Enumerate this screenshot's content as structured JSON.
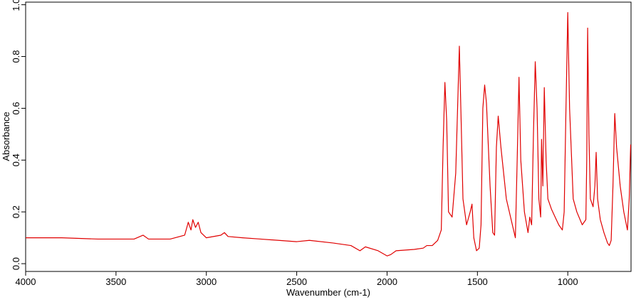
{
  "chart_data": {
    "type": "line",
    "x_label": "Wavenumber (cm-1)",
    "y_label": "Absorbance",
    "xlim": [
      4000,
      650
    ],
    "ylim": [
      -0.03,
      1.01
    ],
    "xticks": [
      4000,
      3500,
      3000,
      2500,
      2000,
      1500,
      1000
    ],
    "yticks": [
      {
        "value": 0,
        "label": "0.0"
      },
      0.2,
      0.4,
      0.6,
      0.8,
      {
        "value": 1,
        "label": "1.0"
      }
    ],
    "series": [
      {
        "color": "#e00000",
        "x": [
          4000,
          3800,
          3600,
          3400,
          3350,
          3320,
          3200,
          3120,
          3100,
          3085,
          3075,
          3060,
          3045,
          3030,
          3000,
          2920,
          2900,
          2880,
          2800,
          2700,
          2600,
          2500,
          2430,
          2300,
          2200,
          2150,
          2120,
          2050,
          2000,
          1980,
          1950,
          1850,
          1800,
          1780,
          1750,
          1720,
          1700,
          1690,
          1680,
          1670,
          1660,
          1640,
          1620,
          1600,
          1590,
          1580,
          1560,
          1540,
          1530,
          1520,
          1505,
          1490,
          1480,
          1470,
          1460,
          1450,
          1430,
          1415,
          1405,
          1395,
          1385,
          1370,
          1340,
          1320,
          1300,
          1290,
          1280,
          1270,
          1260,
          1240,
          1220,
          1210,
          1200,
          1190,
          1180,
          1170,
          1160,
          1150,
          1145,
          1138,
          1130,
          1120,
          1110,
          1090,
          1070,
          1050,
          1030,
          1020,
          1010,
          1000,
          990,
          970,
          950,
          920,
          900,
          895,
          890,
          883,
          875,
          860,
          850,
          843,
          835,
          820,
          800,
          780,
          770,
          760,
          750,
          740,
          730,
          710,
          690,
          670,
          660,
          652
        ],
        "values": [
          0.1,
          0.1,
          0.095,
          0.095,
          0.11,
          0.095,
          0.095,
          0.11,
          0.16,
          0.13,
          0.17,
          0.14,
          0.16,
          0.12,
          0.1,
          0.11,
          0.12,
          0.105,
          0.1,
          0.095,
          0.09,
          0.085,
          0.09,
          0.08,
          0.07,
          0.05,
          0.065,
          0.05,
          0.03,
          0.035,
          0.05,
          0.055,
          0.06,
          0.07,
          0.07,
          0.09,
          0.13,
          0.45,
          0.7,
          0.55,
          0.2,
          0.18,
          0.35,
          0.84,
          0.55,
          0.25,
          0.15,
          0.2,
          0.23,
          0.1,
          0.05,
          0.06,
          0.15,
          0.6,
          0.69,
          0.62,
          0.3,
          0.12,
          0.11,
          0.45,
          0.57,
          0.45,
          0.25,
          0.19,
          0.13,
          0.1,
          0.4,
          0.72,
          0.4,
          0.2,
          0.12,
          0.18,
          0.15,
          0.5,
          0.78,
          0.6,
          0.25,
          0.18,
          0.48,
          0.3,
          0.68,
          0.4,
          0.25,
          0.21,
          0.18,
          0.15,
          0.13,
          0.2,
          0.6,
          0.97,
          0.6,
          0.25,
          0.2,
          0.15,
          0.17,
          0.4,
          0.91,
          0.5,
          0.25,
          0.22,
          0.3,
          0.43,
          0.25,
          0.17,
          0.12,
          0.08,
          0.07,
          0.09,
          0.3,
          0.58,
          0.45,
          0.3,
          0.2,
          0.13,
          0.25,
          0.46
        ]
      }
    ]
  }
}
